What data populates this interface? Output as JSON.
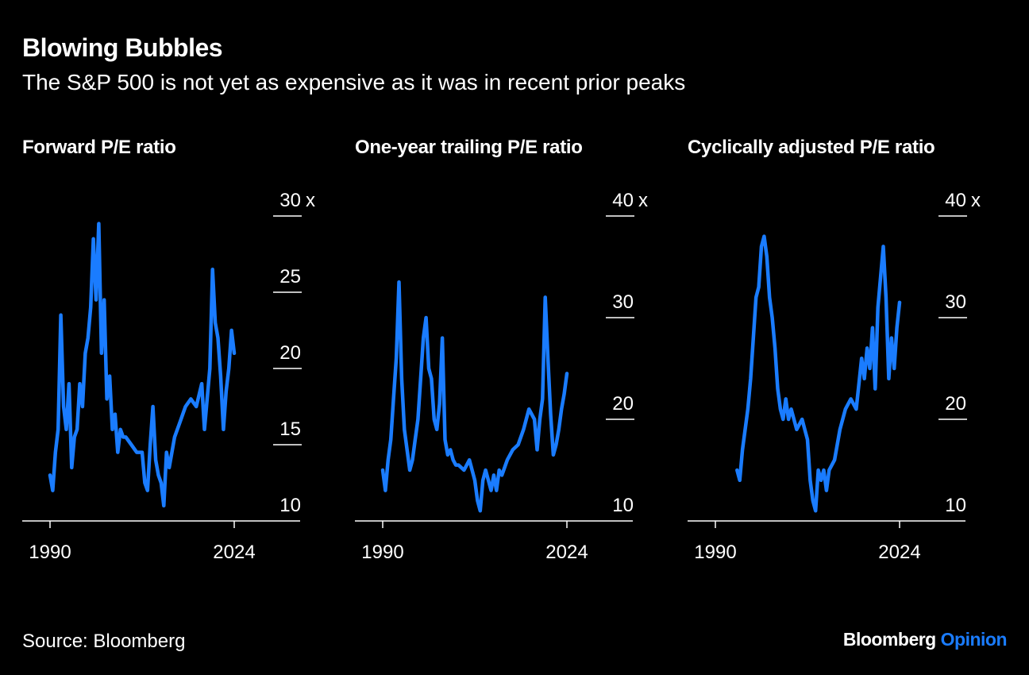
{
  "title": "Blowing Bubbles",
  "subtitle": "The S&P 500 is not yet as expensive as it was in recent prior peaks",
  "source": "Source: Bloomberg",
  "brand": {
    "name": "Bloomberg",
    "suffix": "Opinion"
  },
  "colors": {
    "background": "#000000",
    "line": "#1a7cff",
    "text": "#ffffff",
    "brand_accent": "#1a7cff"
  },
  "chart_data": [
    {
      "type": "line",
      "title": "Forward P/E ratio",
      "y_unit": "x",
      "ylim": [
        10,
        30
      ],
      "yticks": [
        10,
        15,
        20,
        25,
        30
      ],
      "xlim": [
        1990,
        2024
      ],
      "xticks": [
        1990,
        2024
      ],
      "series": [
        {
          "x": [
            1990.0,
            1990.5,
            1991.0,
            1991.5,
            1992.0,
            1992.5,
            1993.0,
            1993.5,
            1994.0,
            1994.5,
            1995.0,
            1995.5,
            1996.0,
            1996.5,
            1997.0,
            1997.5,
            1998.0,
            1998.5,
            1999.0,
            1999.5,
            2000.0,
            2000.5,
            2001.0,
            2001.5,
            2002.0,
            2002.5,
            2003.0,
            2003.5,
            2004.0,
            2005.0,
            2006.0,
            2007.0,
            2007.5,
            2008.0,
            2008.5,
            2009.0,
            2009.5,
            2010.0,
            2010.5,
            2011.0,
            2011.5,
            2012.0,
            2013.0,
            2014.0,
            2015.0,
            2016.0,
            2017.0,
            2018.0,
            2018.5,
            2019.0,
            2019.5,
            2020.0,
            2020.5,
            2021.0,
            2021.5,
            2022.0,
            2022.5,
            2023.0,
            2023.5,
            2024.0
          ],
          "y": [
            13.0,
            12.0,
            14.5,
            16.0,
            23.5,
            17.5,
            16.0,
            19.0,
            13.5,
            15.5,
            16.0,
            19.0,
            17.5,
            21.0,
            22.0,
            24.0,
            28.5,
            24.5,
            29.5,
            21.0,
            24.5,
            18.0,
            19.5,
            16.0,
            17.0,
            14.5,
            16.0,
            15.5,
            15.5,
            15.0,
            14.5,
            14.5,
            12.5,
            12.0,
            15.0,
            17.5,
            14.0,
            13.0,
            12.5,
            11.0,
            14.5,
            13.5,
            15.5,
            16.5,
            17.5,
            18.0,
            17.5,
            19.0,
            16.0,
            18.0,
            20.0,
            26.5,
            23.0,
            22.0,
            19.5,
            16.0,
            18.5,
            20.0,
            22.5,
            21.0
          ]
        }
      ]
    },
    {
      "type": "line",
      "title": "One-year trailing P/E ratio",
      "y_unit": "x",
      "ylim": [
        10,
        40
      ],
      "yticks": [
        10,
        20,
        30,
        40
      ],
      "xlim": [
        1990,
        2024
      ],
      "xticks": [
        1990,
        2024
      ],
      "series": [
        {
          "x": [
            1990.0,
            1990.5,
            1991.0,
            1991.5,
            1992.0,
            1992.5,
            1993.0,
            1993.5,
            1994.0,
            1994.5,
            1995.0,
            1995.5,
            1996.0,
            1996.5,
            1997.0,
            1997.5,
            1998.0,
            1998.5,
            1999.0,
            1999.5,
            2000.0,
            2000.5,
            2001.0,
            2001.5,
            2002.0,
            2002.5,
            2003.0,
            2003.5,
            2004.0,
            2005.0,
            2006.0,
            2007.0,
            2007.5,
            2008.0,
            2008.5,
            2009.0,
            2009.5,
            2010.0,
            2010.5,
            2011.0,
            2011.5,
            2012.0,
            2013.0,
            2014.0,
            2015.0,
            2016.0,
            2017.0,
            2018.0,
            2018.5,
            2019.0,
            2019.5,
            2020.0,
            2020.5,
            2021.0,
            2021.5,
            2022.0,
            2022.5,
            2023.0,
            2023.5,
            2024.0
          ],
          "y": [
            15.0,
            13.0,
            16.0,
            18.0,
            22.0,
            26.0,
            33.5,
            24.0,
            19.0,
            17.0,
            15.0,
            16.0,
            18.0,
            20.0,
            24.0,
            28.0,
            30.0,
            25.0,
            24.0,
            20.0,
            19.0,
            21.5,
            28.0,
            18.0,
            16.5,
            17.0,
            16.0,
            15.5,
            15.5,
            15.0,
            16.0,
            14.0,
            12.0,
            11.0,
            14.0,
            15.0,
            14.0,
            13.0,
            14.5,
            13.0,
            15.0,
            14.5,
            16.0,
            17.0,
            17.5,
            19.0,
            21.0,
            20.0,
            17.0,
            20.0,
            22.0,
            32.0,
            26.0,
            20.5,
            16.5,
            17.5,
            19.0,
            21.0,
            22.5,
            24.5
          ]
        }
      ]
    },
    {
      "type": "line",
      "title": "Cyclically adjusted P/E ratio",
      "y_unit": "x",
      "ylim": [
        10,
        40
      ],
      "yticks": [
        10,
        20,
        30,
        40
      ],
      "xlim": [
        1990,
        2024
      ],
      "xticks": [
        1990,
        2024
      ],
      "series": [
        {
          "x": [
            1994.0,
            1994.5,
            1995.0,
            1995.5,
            1996.0,
            1996.5,
            1997.0,
            1997.5,
            1998.0,
            1998.5,
            1999.0,
            1999.5,
            2000.0,
            2000.5,
            2001.0,
            2001.5,
            2002.0,
            2002.5,
            2003.0,
            2003.5,
            2004.0,
            2005.0,
            2006.0,
            2007.0,
            2007.5,
            2008.0,
            2008.5,
            2009.0,
            2009.5,
            2010.0,
            2010.5,
            2011.0,
            2012.0,
            2013.0,
            2014.0,
            2015.0,
            2016.0,
            2017.0,
            2017.5,
            2018.0,
            2018.5,
            2019.0,
            2019.5,
            2020.0,
            2020.5,
            2021.0,
            2021.5,
            2022.0,
            2022.5,
            2023.0,
            2023.5,
            2024.0
          ],
          "y": [
            15.0,
            14.0,
            17.0,
            19.0,
            21.0,
            24.0,
            28.0,
            32.0,
            33.0,
            37.0,
            38.0,
            36.0,
            32.0,
            30.0,
            27.0,
            23.0,
            21.0,
            20.0,
            22.0,
            20.0,
            21.0,
            19.0,
            20.0,
            18.0,
            14.0,
            12.0,
            11.0,
            15.0,
            14.0,
            15.0,
            13.0,
            15.0,
            16.0,
            19.0,
            21.0,
            22.0,
            21.0,
            26.0,
            24.0,
            27.0,
            25.0,
            29.0,
            23.0,
            31.0,
            34.0,
            37.0,
            32.0,
            24.0,
            28.0,
            25.0,
            29.0,
            31.5
          ]
        }
      ]
    }
  ]
}
